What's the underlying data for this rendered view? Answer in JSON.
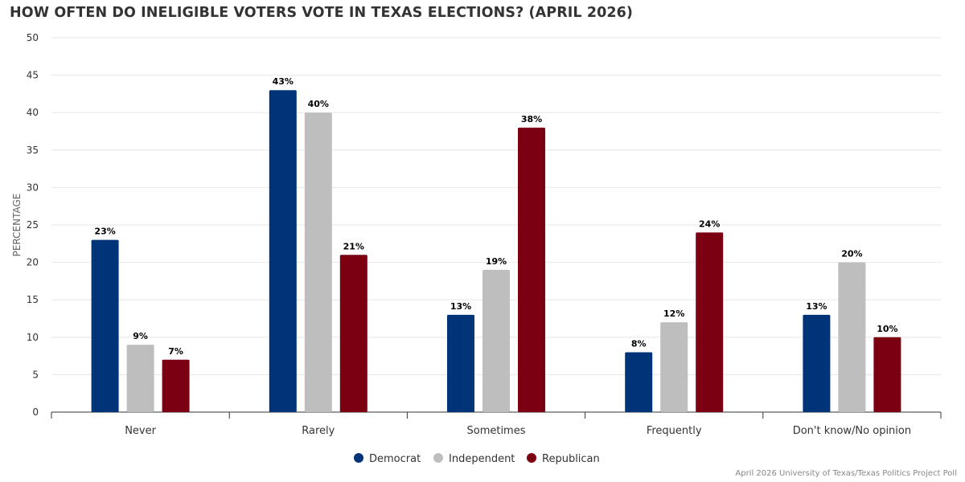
{
  "chart_data": {
    "type": "bar",
    "title": "HOW OFTEN DO INELIGIBLE VOTERS VOTE IN TEXAS ELECTIONS? (APRIL 2026)",
    "ylabel": "PERCENTAGE",
    "xlabel": "",
    "ylim": [
      0,
      50
    ],
    "yticks": [
      0,
      5,
      10,
      15,
      20,
      25,
      30,
      35,
      40,
      45,
      50
    ],
    "grid": true,
    "legend_position": "bottom",
    "categories": [
      "Never",
      "Rarely",
      "Sometimes",
      "Frequently",
      "Don't know/No opinion"
    ],
    "series": [
      {
        "name": "Democrat",
        "color": "#003478",
        "values": [
          23,
          43,
          13,
          8,
          13
        ],
        "labels": [
          "23%",
          "43%",
          "13%",
          "8%",
          "13%"
        ]
      },
      {
        "name": "Independent",
        "color": "#bebebe",
        "values": [
          9,
          40,
          19,
          12,
          20
        ],
        "labels": [
          "9%",
          "40%",
          "19%",
          "12%",
          "20%"
        ]
      },
      {
        "name": "Republican",
        "color": "#7b0011",
        "values": [
          7,
          21,
          38,
          24,
          10
        ],
        "labels": [
          "7%",
          "21%",
          "38%",
          "24%",
          "10%"
        ]
      }
    ],
    "source": "April 2026 University of Texas/Texas Politics Project Poll"
  }
}
